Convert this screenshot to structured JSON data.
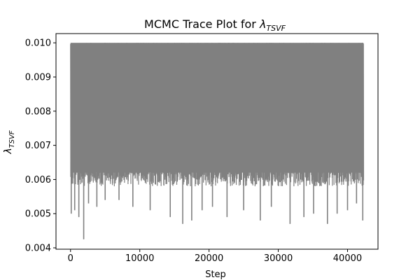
{
  "chart_data": {
    "type": "line",
    "title_text": "MCMC Trace Plot for ",
    "title_symbol": "λ",
    "title_subscript": "TSVF",
    "xlabel": "Step",
    "ylabel_symbol": "λ",
    "ylabel_subscript": "TSVF",
    "xlim": [
      -2100,
      44400
    ],
    "ylim": [
      0.00396,
      0.01027
    ],
    "x_ticks": [
      0,
      10000,
      20000,
      30000,
      40000
    ],
    "x_tick_labels": [
      "0",
      "10000",
      "20000",
      "30000",
      "40000"
    ],
    "y_ticks": [
      0.004,
      0.005,
      0.006,
      0.007,
      0.008,
      0.009,
      0.01
    ],
    "y_tick_labels": [
      "0.004",
      "0.005",
      "0.006",
      "0.007",
      "0.008",
      "0.009",
      "0.010"
    ],
    "grid": false,
    "legend": false,
    "series": [
      {
        "color": "#808080",
        "n_steps": 42300,
        "upper_bound": 0.01,
        "typical_low": 0.0058,
        "min_value": 0.00425,
        "min_step": 1900,
        "spikes": [
          {
            "x": 50,
            "y": 0.0065
          },
          {
            "x": 100,
            "y": 0.005
          },
          {
            "x": 600,
            "y": 0.0051
          },
          {
            "x": 1200,
            "y": 0.0049
          },
          {
            "x": 1900,
            "y": 0.00425
          },
          {
            "x": 2600,
            "y": 0.0053
          },
          {
            "x": 3800,
            "y": 0.0052
          },
          {
            "x": 5000,
            "y": 0.0054
          },
          {
            "x": 7000,
            "y": 0.0054
          },
          {
            "x": 9000,
            "y": 0.0052
          },
          {
            "x": 11500,
            "y": 0.0051
          },
          {
            "x": 14400,
            "y": 0.0049
          },
          {
            "x": 16200,
            "y": 0.0047
          },
          {
            "x": 17500,
            "y": 0.0048
          },
          {
            "x": 19000,
            "y": 0.0051
          },
          {
            "x": 20500,
            "y": 0.0052
          },
          {
            "x": 22600,
            "y": 0.0049
          },
          {
            "x": 25000,
            "y": 0.0051
          },
          {
            "x": 27400,
            "y": 0.0048
          },
          {
            "x": 29000,
            "y": 0.0052
          },
          {
            "x": 31700,
            "y": 0.0047
          },
          {
            "x": 33700,
            "y": 0.0049
          },
          {
            "x": 35100,
            "y": 0.005
          },
          {
            "x": 37100,
            "y": 0.0047
          },
          {
            "x": 38500,
            "y": 0.005
          },
          {
            "x": 40000,
            "y": 0.0051
          },
          {
            "x": 41300,
            "y": 0.0053
          },
          {
            "x": 42200,
            "y": 0.0048
          }
        ]
      }
    ]
  }
}
